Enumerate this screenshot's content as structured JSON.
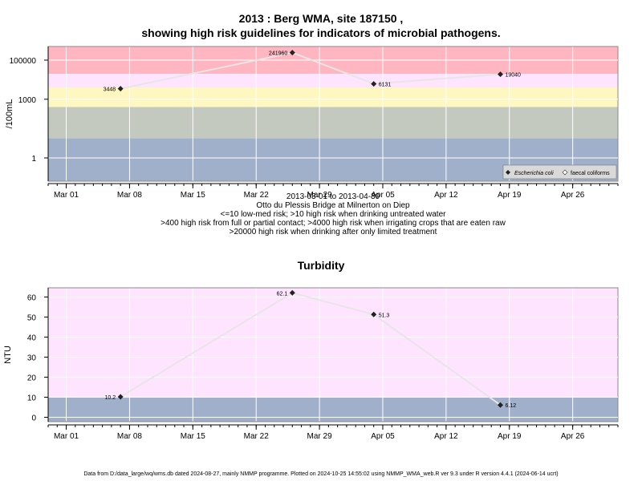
{
  "title_top": [
    "2013 : Berg WMA, site 187150 ,",
    "showing high risk guidelines for indicators of microbial pathogens."
  ],
  "caption_lines": [
    "2013-03-01 to 2013-04-30",
    "Otto du Plessis Bridge at Milnerton on Diep",
    "<=10 low-med risk; >10 high risk when drinking untreated water",
    ">400 high risk from full or partial contact; >4000 high risk when irrigating crops that are eaten raw",
    ">20000 high risk when drinking after only limited treatment"
  ],
  "title_bottom": "Turbidity",
  "footer": "Data from D:/data_large/wq/wms.db dated 2024-08-27, mainly NMMP programme. Plotted on 2024-10-25 14:55:02 using NMMP_WMA_web.R ver 9.3 under R version 4.4.1 (2024-06-14 ucrt)",
  "colors": {
    "band_very_high": "#ffb6c1",
    "band_high_contact": "#ffe4ff",
    "band_irrigation": "#fff7c0",
    "band_drinking": "#c4c9c0",
    "band_low": "#a0b0cb",
    "line": "#e6e6e6",
    "point": "#222222",
    "grid": "#ffffff"
  },
  "chart_data": [
    {
      "type": "line",
      "title": "2013 : Berg WMA, site 187150 , showing high risk guidelines for indicators of microbial pathogens.",
      "ylabel": "/100mL",
      "xlabel": "",
      "y_scale": "log10",
      "x_ticks": [
        "Mar 01",
        "Mar 08",
        "Mar 15",
        "Mar 22",
        "Mar 29",
        "Apr 05",
        "Apr 12",
        "Apr 19",
        "Apr 26"
      ],
      "y_ticks": [
        "1",
        "1000",
        "100000"
      ],
      "series": [
        {
          "name": "Escherichia coli",
          "x": [
            "2013-03-07",
            "2013-03-26",
            "2013-04-04",
            "2013-04-18"
          ],
          "y": [
            3448,
            241960,
            6131,
            19040
          ],
          "labels": [
            "3448",
            "241960",
            "6131",
            "19040"
          ]
        }
      ],
      "legend": [
        "Escherichia coli",
        "faecal coliforms"
      ],
      "legend_position": "bottom-right",
      "guideline_bands": [
        "<=10",
        "10-400",
        "400-4000",
        "4000-20000",
        ">20000"
      ],
      "grid": true
    },
    {
      "type": "line",
      "title": "Turbidity",
      "ylabel": "NTU",
      "xlabel": "",
      "x_ticks": [
        "Mar 01",
        "Mar 08",
        "Mar 15",
        "Mar 22",
        "Mar 29",
        "Apr 05",
        "Apr 12",
        "Apr 19",
        "Apr 26"
      ],
      "y_ticks": [
        "0",
        "10",
        "20",
        "30",
        "40",
        "50",
        "60"
      ],
      "ylim": [
        -2,
        65
      ],
      "series": [
        {
          "x": [
            "2013-03-07",
            "2013-03-26",
            "2013-04-04",
            "2013-04-18"
          ],
          "y": [
            10.2,
            62.1,
            51.3,
            6.12
          ],
          "labels": [
            "10.2",
            "62.1",
            "51.3",
            "6.12"
          ]
        }
      ],
      "guideline_bands": [
        "<=10",
        ">10"
      ],
      "grid": true
    }
  ]
}
